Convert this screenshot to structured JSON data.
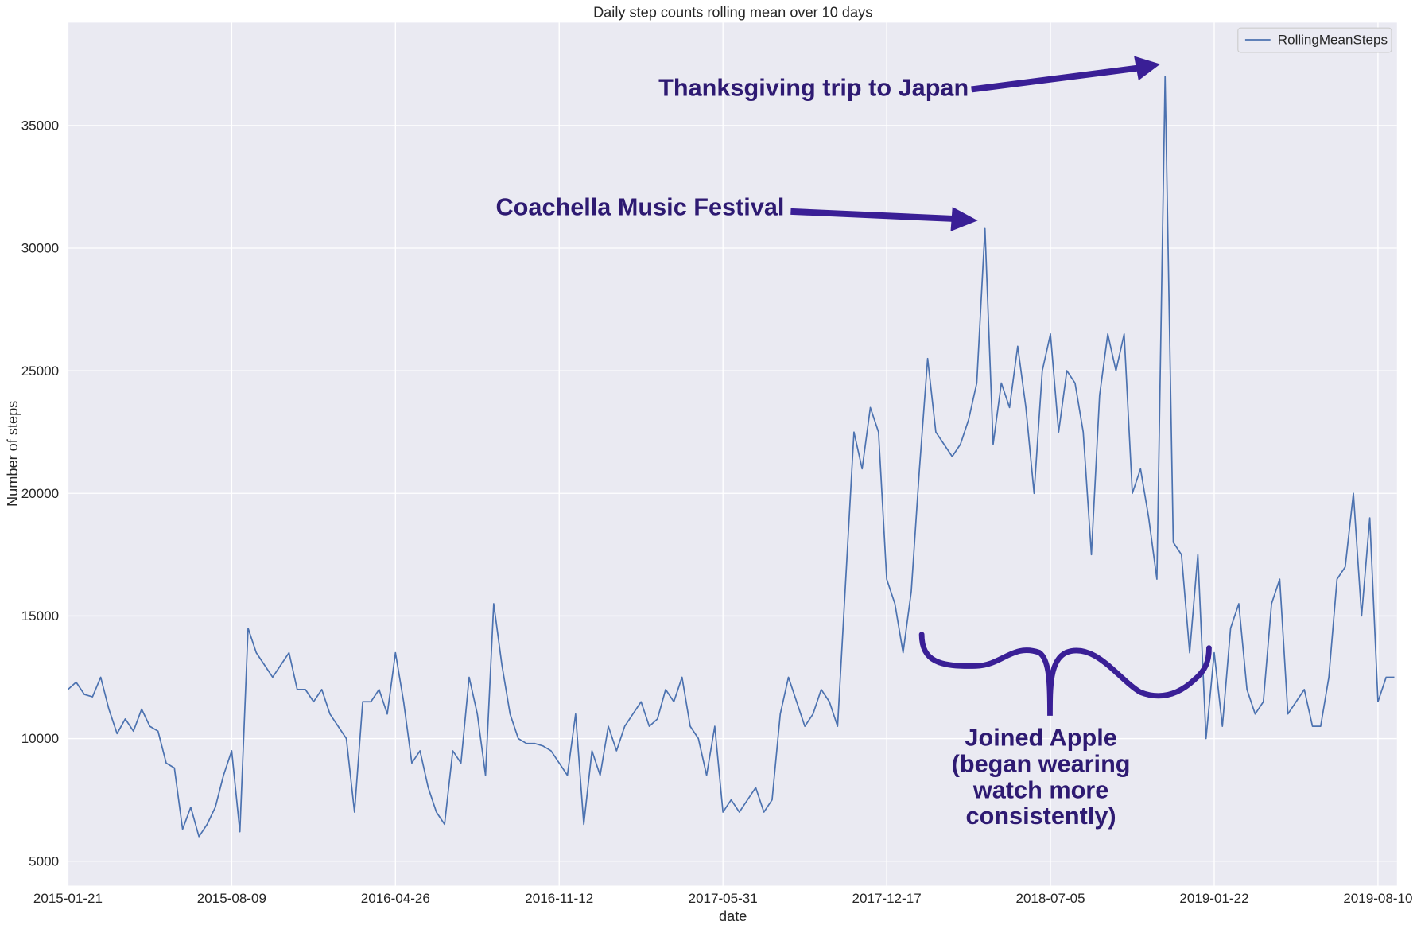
{
  "chart_data": {
    "type": "line",
    "title": "Daily step counts rolling mean over 10 days",
    "x_label": "date",
    "y_label": "Number of steps",
    "categories": [
      "2015-01-21",
      null,
      null,
      null,
      null,
      null,
      null,
      null,
      null,
      null,
      null,
      null,
      null,
      null,
      null,
      null,
      null,
      null,
      null,
      null,
      "2015-08-09",
      null,
      null,
      null,
      null,
      null,
      null,
      null,
      null,
      null,
      null,
      null,
      null,
      null,
      null,
      null,
      null,
      null,
      null,
      null,
      "2016-04-26",
      null,
      null,
      null,
      null,
      null,
      null,
      null,
      null,
      null,
      null,
      null,
      null,
      null,
      null,
      null,
      null,
      null,
      null,
      null,
      "2016-11-12",
      null,
      null,
      null,
      null,
      null,
      null,
      null,
      null,
      null,
      null,
      null,
      null,
      null,
      null,
      null,
      null,
      null,
      null,
      null,
      "2017-05-31",
      null,
      null,
      null,
      null,
      null,
      null,
      null,
      null,
      null,
      null,
      null,
      null,
      null,
      null,
      null,
      null,
      null,
      null,
      null,
      "2017-12-17",
      null,
      null,
      null,
      null,
      null,
      null,
      null,
      null,
      null,
      null,
      null,
      null,
      null,
      null,
      null,
      null,
      null,
      null,
      null,
      "2018-07-05",
      null,
      null,
      null,
      null,
      null,
      null,
      null,
      null,
      null,
      null,
      null,
      null,
      null,
      null,
      null,
      null,
      null,
      null,
      null,
      "2019-01-22",
      null,
      null,
      null,
      null,
      null,
      null,
      null,
      null,
      null,
      null,
      null,
      null,
      null,
      null,
      null,
      null,
      null,
      null,
      null,
      "2019-08-10",
      null,
      null
    ],
    "series": [
      {
        "name": "RollingMeanSteps",
        "color": "#4c72b0",
        "values": [
          12000,
          12300,
          11800,
          11700,
          12500,
          11200,
          10200,
          10800,
          10300,
          11200,
          10500,
          10300,
          9000,
          8800,
          6300,
          7200,
          6000,
          6500,
          7200,
          8500,
          9500,
          6200,
          14500,
          13500,
          13000,
          12500,
          13000,
          13500,
          12000,
          12000,
          11500,
          12000,
          11000,
          10500,
          10000,
          7000,
          11500,
          11500,
          12000,
          11000,
          13500,
          11500,
          9000,
          9500,
          8000,
          7000,
          6500,
          9500,
          9000,
          12500,
          11000,
          8500,
          15500,
          13000,
          11000,
          10000,
          9800,
          9800,
          9700,
          9500,
          9000,
          8500,
          11000,
          6500,
          9500,
          8500,
          10500,
          9500,
          10500,
          11000,
          11500,
          10500,
          10800,
          12000,
          11500,
          12500,
          10500,
          10000,
          8500,
          10500,
          7000,
          7500,
          7000,
          7500,
          8000,
          7000,
          7500,
          11000,
          12500,
          11500,
          10500,
          11000,
          12000,
          11500,
          10500,
          16500,
          22500,
          21000,
          23500,
          22500,
          16500,
          15500,
          13500,
          16000,
          21000,
          25500,
          22500,
          22000,
          21500,
          22000,
          23000,
          24500,
          30800,
          22000,
          24500,
          23500,
          26000,
          23500,
          20000,
          25000,
          26500,
          22500,
          25000,
          24500,
          22500,
          17500,
          24000,
          26500,
          25000,
          26500,
          20000,
          21000,
          19000,
          16500,
          37000,
          18000,
          17500,
          13500,
          17500,
          10000,
          13500,
          10500,
          14500,
          15500,
          12000,
          11000,
          11500,
          15500,
          16500,
          11000,
          11500,
          12000,
          10500,
          10500,
          12500,
          16500,
          17000,
          20000,
          15000,
          19000,
          11500,
          12500,
          12500
        ]
      }
    ],
    "ylim": [
      4000,
      39200
    ],
    "yticks": [
      5000,
      10000,
      15000,
      20000,
      25000,
      30000,
      35000
    ],
    "grid": true,
    "legend": "upper right",
    "annotations": [
      {
        "text": "Thanksgiving trip to Japan"
      },
      {
        "text": "Coachella Music Festival"
      },
      {
        "lines": [
          "Joined Apple",
          "(began wearing",
          "watch more",
          "consistently)"
        ]
      }
    ]
  }
}
